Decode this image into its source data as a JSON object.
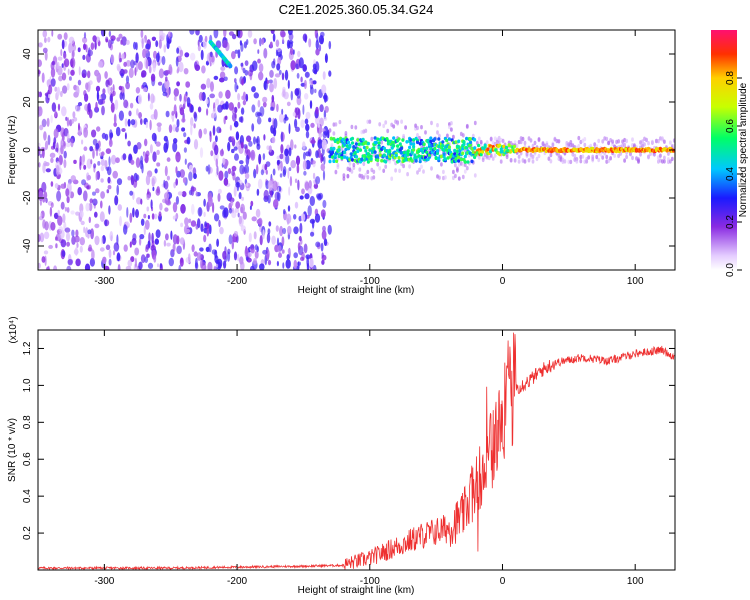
{
  "title": "C2E1.2025.360.05.34.G24",
  "chart_data": [
    {
      "type": "heatmap",
      "title": "C2E1.2025.360.05.34.G24",
      "xlabel": "Height of straight line (km)",
      "ylabel": "Frequency (Hz)",
      "xlim": [
        -350,
        130
      ],
      "ylim": [
        -50,
        50
      ],
      "x_ticks": [
        -300,
        -200,
        -100,
        0,
        100
      ],
      "x_tick_labels": [
        "-300",
        "-200",
        "-100",
        "0",
        "100"
      ],
      "y_ticks": [
        -40,
        -20,
        0,
        20,
        40
      ],
      "y_tick_labels": [
        "-40",
        "-20",
        "0",
        "20",
        "40"
      ],
      "features": {
        "noise_region_x": [
          -350,
          -130
        ],
        "signal_track_freq_hz": 0,
        "signal_onset_x": -130,
        "spur_track": [
          [
            -220,
            45
          ],
          [
            -205,
            35
          ]
        ]
      },
      "colorbar": {
        "label": "Normalized spectral amplitude",
        "range": [
          0,
          1
        ],
        "ticks": [
          0.0,
          0.2,
          0.4,
          0.6,
          0.8
        ],
        "tick_labels": [
          "0.0",
          "0.2",
          "0.4",
          "0.6",
          "0.8"
        ]
      }
    },
    {
      "type": "line",
      "xlabel": "Height of straight line (km)",
      "ylabel": "SNR (10 * v/v)",
      "y_scale_label": "(x10⁴)",
      "xlim": [
        -350,
        130
      ],
      "ylim": [
        0,
        1.3
      ],
      "x_ticks": [
        -300,
        -200,
        -100,
        0,
        100
      ],
      "x_tick_labels": [
        "-300",
        "-200",
        "-100",
        "0",
        "100"
      ],
      "y_ticks": [
        0.2,
        0.4,
        0.6,
        0.8,
        1.0,
        1.2
      ],
      "y_tick_labels": [
        "0.2",
        "0.4",
        "0.6",
        "0.8",
        "1.0",
        "1.2"
      ],
      "series": [
        {
          "name": "SNR",
          "color": "#ee3030",
          "x": [
            -350,
            -300,
            -250,
            -200,
            -150,
            -120,
            -100,
            -80,
            -60,
            -40,
            -30,
            -20,
            -10,
            0,
            5,
            10,
            20,
            30,
            40,
            60,
            80,
            100,
            120,
            130
          ],
          "y": [
            0.01,
            0.01,
            0.01,
            0.015,
            0.02,
            0.025,
            0.06,
            0.12,
            0.18,
            0.22,
            0.28,
            0.45,
            0.6,
            0.78,
            0.95,
            0.98,
            1.02,
            1.08,
            1.12,
            1.15,
            1.13,
            1.17,
            1.19,
            1.15
          ]
        }
      ]
    }
  ],
  "colors": {
    "noise": "#6a14e6",
    "signal_line": "#ee3030",
    "axis": "#000000"
  }
}
